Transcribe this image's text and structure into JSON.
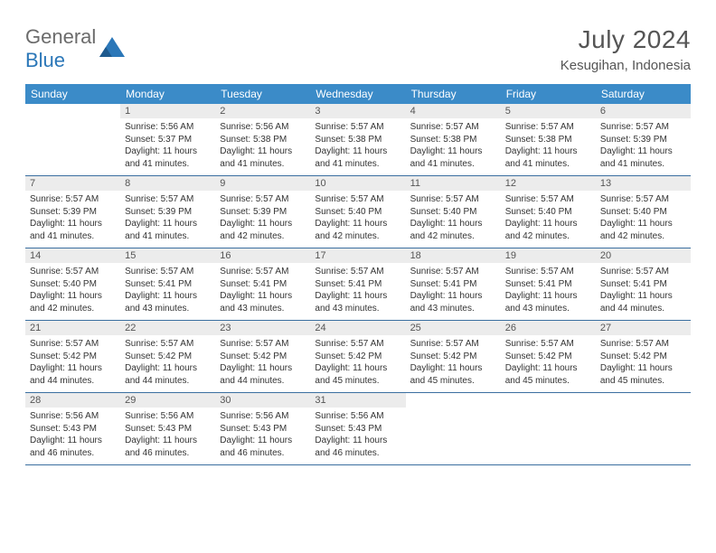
{
  "logo": {
    "text1": "General",
    "text2": "Blue"
  },
  "title": "July 2024",
  "subtitle": "Kesugihan, Indonesia",
  "colors": {
    "header_bg": "#3b8bc8",
    "header_text": "#ffffff",
    "daynum_bg": "#ececec",
    "title_color": "#555555",
    "logo_gray": "#6b6b6b",
    "logo_blue": "#2b77b8",
    "row_border": "#3b6fa0"
  },
  "day_headers": [
    "Sunday",
    "Monday",
    "Tuesday",
    "Wednesday",
    "Thursday",
    "Friday",
    "Saturday"
  ],
  "weeks": [
    [
      null,
      {
        "n": "1",
        "sr": "5:56 AM",
        "ss": "5:37 PM",
        "dl": "11 hours and 41 minutes."
      },
      {
        "n": "2",
        "sr": "5:56 AM",
        "ss": "5:38 PM",
        "dl": "11 hours and 41 minutes."
      },
      {
        "n": "3",
        "sr": "5:57 AM",
        "ss": "5:38 PM",
        "dl": "11 hours and 41 minutes."
      },
      {
        "n": "4",
        "sr": "5:57 AM",
        "ss": "5:38 PM",
        "dl": "11 hours and 41 minutes."
      },
      {
        "n": "5",
        "sr": "5:57 AM",
        "ss": "5:38 PM",
        "dl": "11 hours and 41 minutes."
      },
      {
        "n": "6",
        "sr": "5:57 AM",
        "ss": "5:39 PM",
        "dl": "11 hours and 41 minutes."
      }
    ],
    [
      {
        "n": "7",
        "sr": "5:57 AM",
        "ss": "5:39 PM",
        "dl": "11 hours and 41 minutes."
      },
      {
        "n": "8",
        "sr": "5:57 AM",
        "ss": "5:39 PM",
        "dl": "11 hours and 41 minutes."
      },
      {
        "n": "9",
        "sr": "5:57 AM",
        "ss": "5:39 PM",
        "dl": "11 hours and 42 minutes."
      },
      {
        "n": "10",
        "sr": "5:57 AM",
        "ss": "5:40 PM",
        "dl": "11 hours and 42 minutes."
      },
      {
        "n": "11",
        "sr": "5:57 AM",
        "ss": "5:40 PM",
        "dl": "11 hours and 42 minutes."
      },
      {
        "n": "12",
        "sr": "5:57 AM",
        "ss": "5:40 PM",
        "dl": "11 hours and 42 minutes."
      },
      {
        "n": "13",
        "sr": "5:57 AM",
        "ss": "5:40 PM",
        "dl": "11 hours and 42 minutes."
      }
    ],
    [
      {
        "n": "14",
        "sr": "5:57 AM",
        "ss": "5:40 PM",
        "dl": "11 hours and 42 minutes."
      },
      {
        "n": "15",
        "sr": "5:57 AM",
        "ss": "5:41 PM",
        "dl": "11 hours and 43 minutes."
      },
      {
        "n": "16",
        "sr": "5:57 AM",
        "ss": "5:41 PM",
        "dl": "11 hours and 43 minutes."
      },
      {
        "n": "17",
        "sr": "5:57 AM",
        "ss": "5:41 PM",
        "dl": "11 hours and 43 minutes."
      },
      {
        "n": "18",
        "sr": "5:57 AM",
        "ss": "5:41 PM",
        "dl": "11 hours and 43 minutes."
      },
      {
        "n": "19",
        "sr": "5:57 AM",
        "ss": "5:41 PM",
        "dl": "11 hours and 43 minutes."
      },
      {
        "n": "20",
        "sr": "5:57 AM",
        "ss": "5:41 PM",
        "dl": "11 hours and 44 minutes."
      }
    ],
    [
      {
        "n": "21",
        "sr": "5:57 AM",
        "ss": "5:42 PM",
        "dl": "11 hours and 44 minutes."
      },
      {
        "n": "22",
        "sr": "5:57 AM",
        "ss": "5:42 PM",
        "dl": "11 hours and 44 minutes."
      },
      {
        "n": "23",
        "sr": "5:57 AM",
        "ss": "5:42 PM",
        "dl": "11 hours and 44 minutes."
      },
      {
        "n": "24",
        "sr": "5:57 AM",
        "ss": "5:42 PM",
        "dl": "11 hours and 45 minutes."
      },
      {
        "n": "25",
        "sr": "5:57 AM",
        "ss": "5:42 PM",
        "dl": "11 hours and 45 minutes."
      },
      {
        "n": "26",
        "sr": "5:57 AM",
        "ss": "5:42 PM",
        "dl": "11 hours and 45 minutes."
      },
      {
        "n": "27",
        "sr": "5:57 AM",
        "ss": "5:42 PM",
        "dl": "11 hours and 45 minutes."
      }
    ],
    [
      {
        "n": "28",
        "sr": "5:56 AM",
        "ss": "5:43 PM",
        "dl": "11 hours and 46 minutes."
      },
      {
        "n": "29",
        "sr": "5:56 AM",
        "ss": "5:43 PM",
        "dl": "11 hours and 46 minutes."
      },
      {
        "n": "30",
        "sr": "5:56 AM",
        "ss": "5:43 PM",
        "dl": "11 hours and 46 minutes."
      },
      {
        "n": "31",
        "sr": "5:56 AM",
        "ss": "5:43 PM",
        "dl": "11 hours and 46 minutes."
      },
      null,
      null,
      null
    ]
  ],
  "labels": {
    "sunrise": "Sunrise: ",
    "sunset": "Sunset: ",
    "daylight": "Daylight: "
  }
}
